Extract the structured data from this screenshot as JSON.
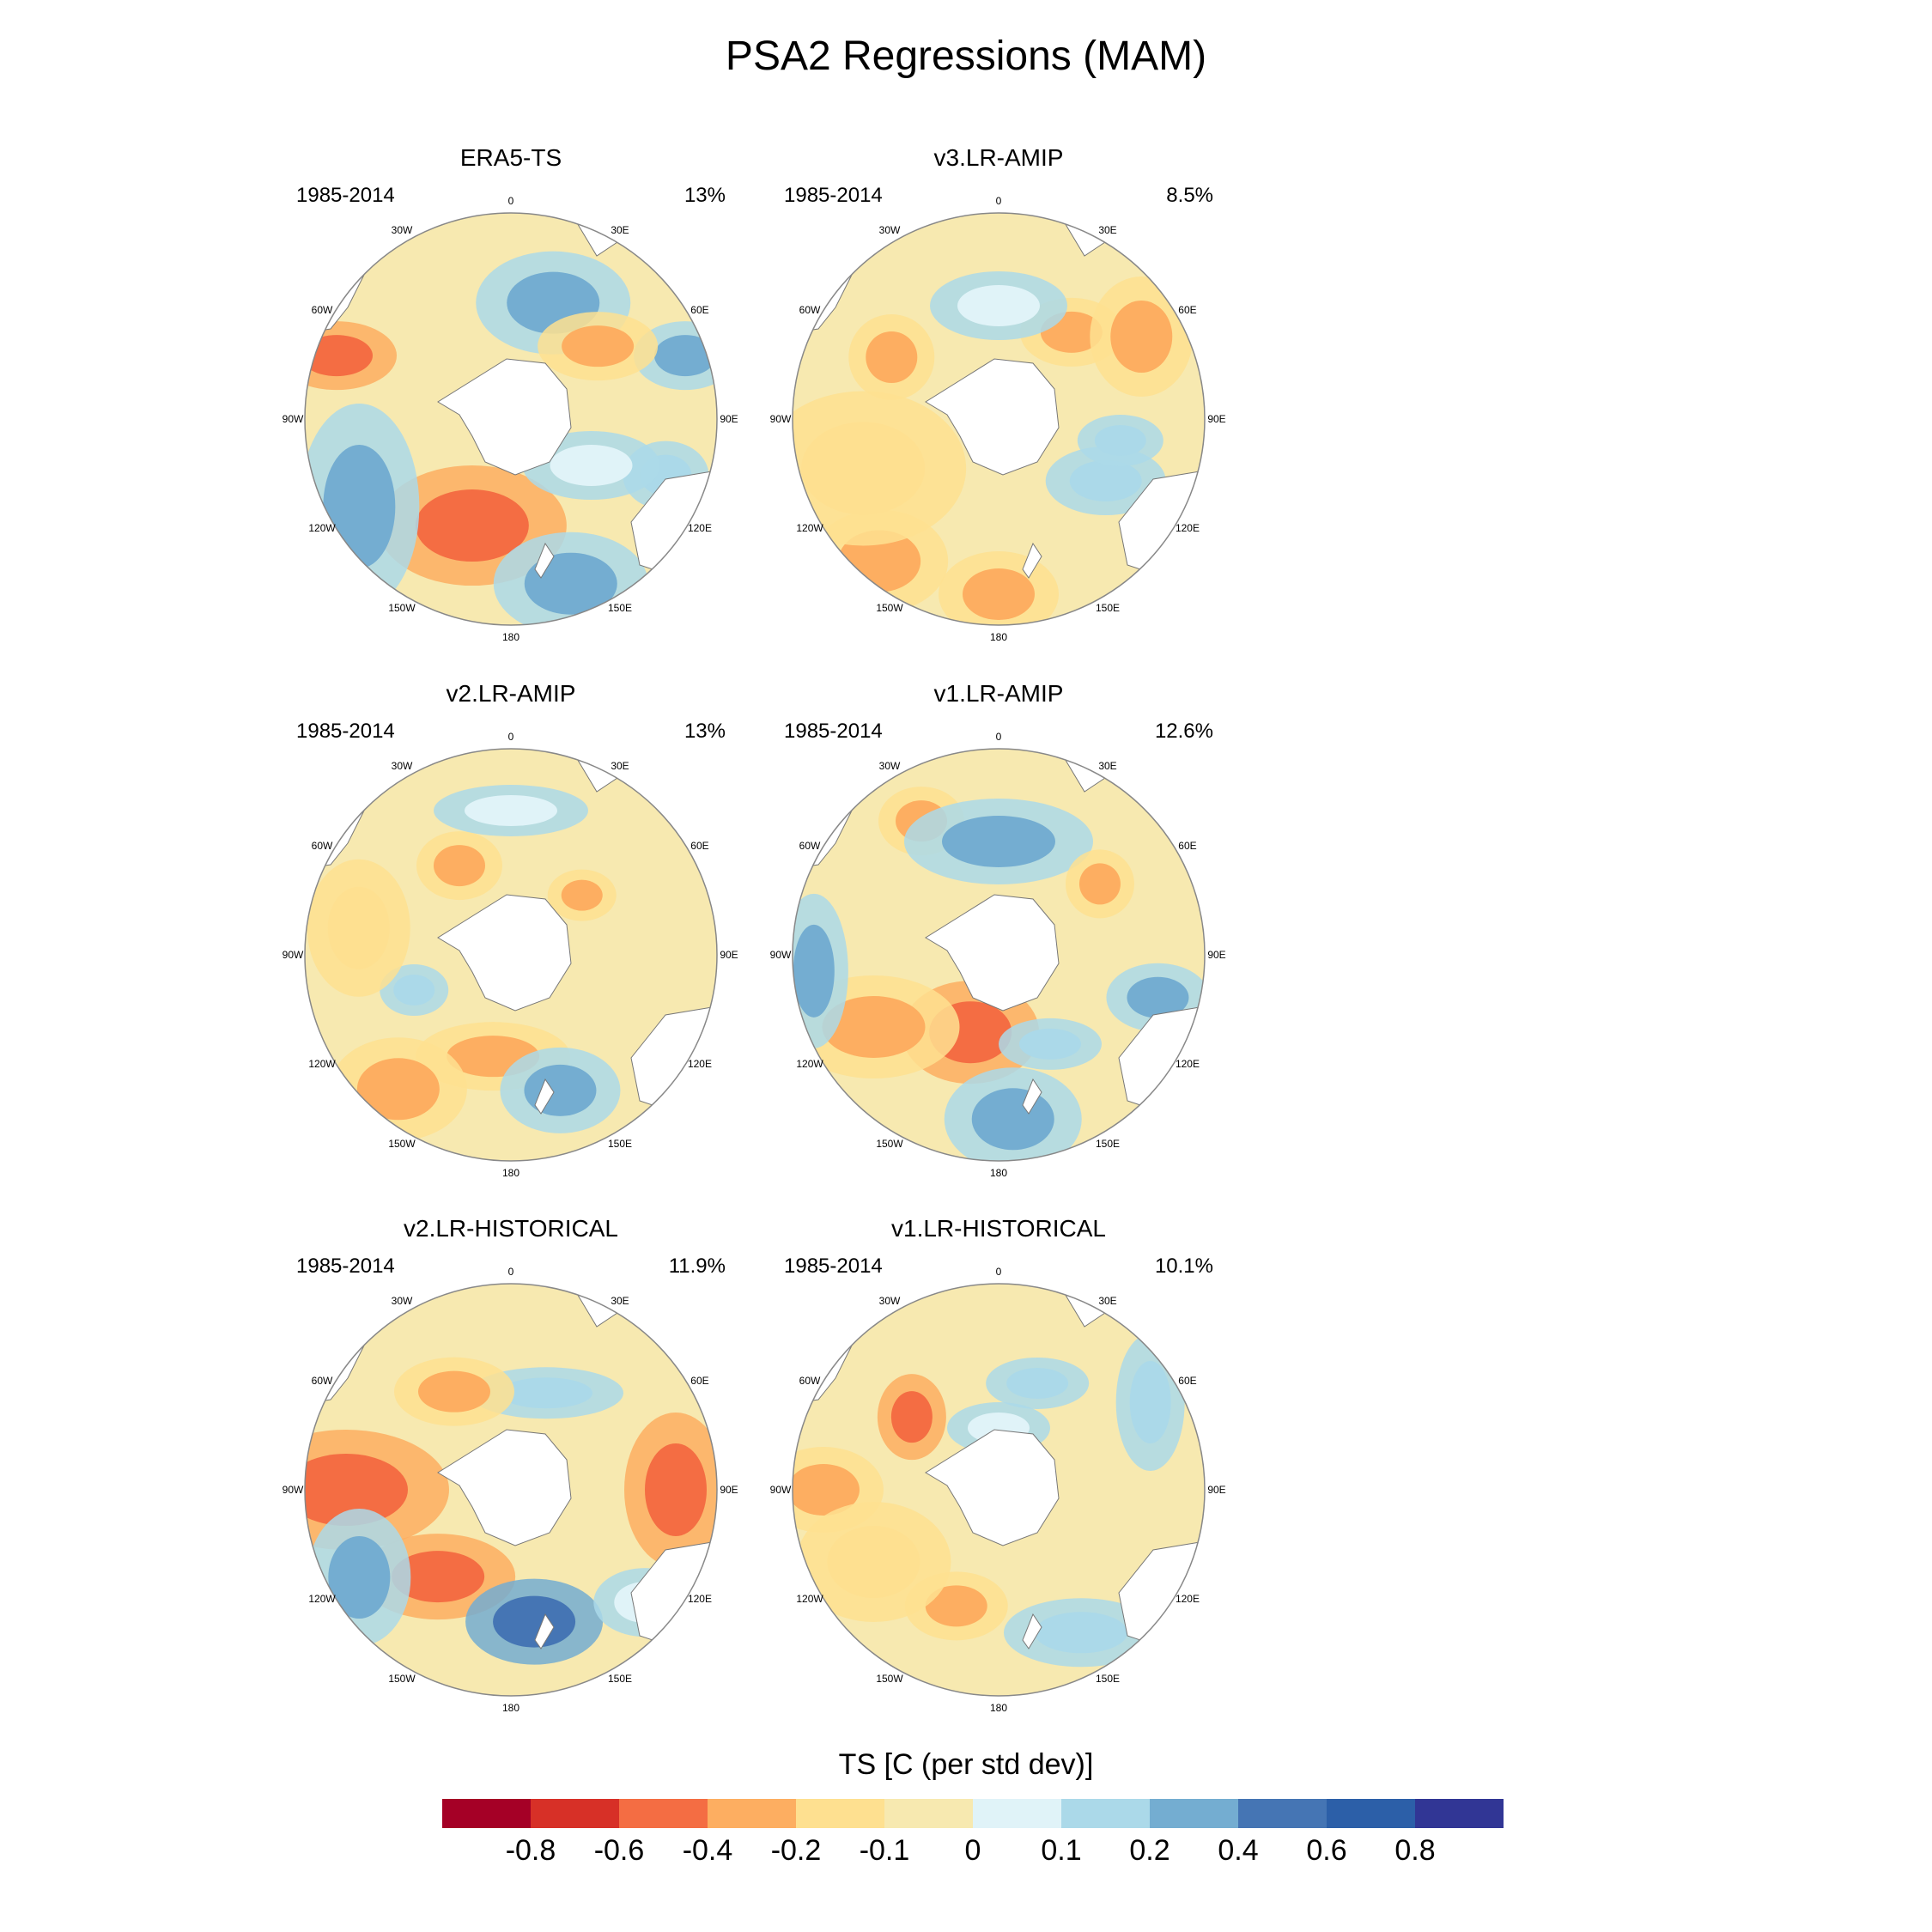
{
  "title": "PSA2 Regressions (MAM)",
  "panels": [
    {
      "title": "ERA5-TS",
      "period": "1985-2014",
      "pct": "13%"
    },
    {
      "title": "v3.LR-AMIP",
      "period": "1985-2014",
      "pct": "8.5%"
    },
    {
      "title": "v2.LR-AMIP",
      "period": "1985-2014",
      "pct": "13%"
    },
    {
      "title": "v1.LR-AMIP",
      "period": "1985-2014",
      "pct": "12.6%"
    },
    {
      "title": "v2.LR-HISTORICAL",
      "period": "1985-2014",
      "pct": "11.9%"
    },
    {
      "title": "v1.LR-HISTORICAL",
      "period": "1985-2014",
      "pct": "10.1%"
    }
  ],
  "lon_labels": [
    "0",
    "30E",
    "60E",
    "90E",
    "120E",
    "150E",
    "180",
    "150W",
    "120W",
    "90W",
    "60W",
    "30W"
  ],
  "colorbar": {
    "title": "TS [C (per std dev)]",
    "tick_labels": [
      "-0.8",
      "-0.6",
      "-0.4",
      "-0.2",
      "-0.1",
      "0",
      "0.1",
      "0.2",
      "0.4",
      "0.6",
      "0.8"
    ],
    "colors": [
      "#a50026",
      "#d73027",
      "#f46d43",
      "#fdae61",
      "#fee090",
      "#f7e9b0",
      "#e0f3f8",
      "#abd9e9",
      "#74add1",
      "#4575b4",
      "#2c5fa8",
      "#313695"
    ]
  },
  "colors": {
    "land": "#ffffff",
    "coast": "#777777",
    "frame": "#888888"
  }
}
